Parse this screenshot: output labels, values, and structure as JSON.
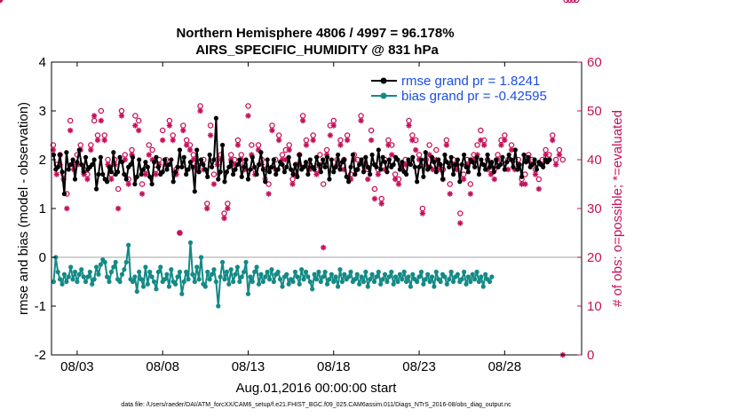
{
  "chart_data": {
    "type": "line",
    "title": "Northern Hemisphere 4806 / 4997 = 96.178%",
    "subtitle": "AIRS_SPECIFIC_HUMIDITY @ 831 hPa",
    "xlabel": "Aug.01,2016 00:00:00 start",
    "ylabel": "rmse and bias (model - observation)",
    "y2label": "# of obs: o=possible; *=evaluated",
    "footnote": "data file: /Users/raeder/DAI/ATM_forcXX/CAM6_setup/f.e21.FHIST_BGC.f09_025.CAM6assim.011/Diags_NTrS_2016-08/obs_diag_output.nc",
    "xlim": [
      1.5,
      32.5
    ],
    "ylim": [
      -2,
      4
    ],
    "y2lim": [
      0,
      60
    ],
    "x_ticks": [
      3,
      8,
      13,
      18,
      23,
      28
    ],
    "x_tick_labels": [
      "08/03",
      "08/08",
      "08/13",
      "08/18",
      "08/23",
      "08/28"
    ],
    "y_ticks": [
      -2,
      -1,
      0,
      1,
      2,
      3,
      4
    ],
    "y_tick_labels": [
      "-2",
      "-1",
      "0",
      "1",
      "2",
      "3",
      "4"
    ],
    "y2_ticks": [
      0,
      10,
      20,
      30,
      40,
      50,
      60
    ],
    "y2_tick_labels": [
      "0",
      "10",
      "20",
      "30",
      "40",
      "50",
      "60"
    ],
    "colors": {
      "rmse": "#000000",
      "bias": "#138a86",
      "obs": "#c7105a",
      "zero_line": "#b3b3b3",
      "legend_text": "#1a4ee6"
    },
    "series": [
      {
        "name": "rmse grand pr = 1.8241",
        "axis": "left",
        "values": [
          2.1,
          1.8,
          1.85,
          2.1,
          1.75,
          1.3,
          2.15,
          1.8,
          1.9,
          2.0,
          1.6,
          1.95,
          2.2,
          1.9,
          1.75,
          2.05,
          1.8,
          1.85,
          1.9,
          2.0,
          1.4,
          1.7,
          2.05,
          1.7,
          1.6,
          1.55,
          1.85,
          1.75,
          2.15,
          1.7,
          1.75,
          2.05,
          1.95,
          1.7,
          1.6,
          1.85,
          1.9,
          2.05,
          1.5,
          1.65,
          2.0,
          1.7,
          1.8,
          1.95,
          1.85,
          1.65,
          1.5,
          1.95,
          2.05,
          1.85,
          1.7,
          1.75,
          2.0,
          1.8,
          1.9,
          2.0,
          1.55,
          1.75,
          1.85,
          2.2,
          1.85,
          2.05,
          1.7,
          1.8,
          1.95,
          1.85,
          1.35,
          2.2,
          1.75,
          2.0,
          1.9,
          1.8,
          1.65,
          2.1,
          1.85,
          2.0,
          2.85,
          1.6,
          1.75,
          2.3,
          1.55,
          1.75,
          1.85,
          1.95,
          1.7,
          1.8,
          1.9,
          2.0,
          1.65,
          1.85,
          2.0,
          1.6,
          1.8,
          2.05,
          1.85,
          1.7,
          1.9,
          2.15,
          1.8,
          1.55,
          2.0,
          1.75,
          1.85,
          2.0,
          1.7,
          1.8,
          1.95,
          1.9,
          1.75,
          1.85,
          2.05,
          1.8,
          1.7,
          1.9,
          1.65,
          2.1,
          1.8,
          1.85,
          1.95,
          1.7,
          2.0,
          1.85,
          1.8,
          2.05,
          1.9,
          1.75,
          2.0,
          1.85,
          2.05,
          1.6,
          2.0,
          1.75,
          1.85,
          2.1,
          1.8,
          1.95,
          2.0,
          1.65,
          1.55,
          1.85,
          2.1,
          1.7,
          1.8,
          1.9,
          2.0,
          1.75,
          2.05,
          1.85,
          1.7,
          2.1,
          1.9,
          1.85,
          2.2,
          1.8,
          2.05,
          1.95,
          1.75,
          2.0,
          1.85,
          1.9,
          2.05,
          2.0,
          1.8,
          1.95,
          1.75,
          1.7,
          2.0,
          1.9,
          2.05,
          1.85,
          1.55,
          1.85,
          2.0,
          1.65,
          2.15,
          1.8,
          1.85,
          2.05,
          1.95,
          1.75,
          2.0,
          1.9,
          1.6,
          2.1,
          1.95,
          1.85,
          2.05,
          1.7,
          1.9,
          2.0,
          1.55,
          1.9,
          2.1,
          1.85,
          1.75,
          2.0,
          1.95,
          1.85,
          2.05,
          1.7,
          2.0,
          1.9,
          1.8,
          2.1,
          1.85,
          1.95,
          1.75,
          2.0,
          1.85,
          1.9,
          2.05,
          1.8,
          1.95,
          2.1,
          2.0,
          1.85,
          2.2,
          1.8,
          1.9,
          1.65,
          2.1,
          1.95,
          2.05,
          1.85,
          1.9,
          2.0,
          1.8,
          1.95,
          1.9,
          1.85,
          2.0,
          1.95,
          2.0
        ],
        "x_start": 1.625,
        "x_step": 0.125
      },
      {
        "name": "bias grand pr = -0.42595",
        "axis": "left",
        "values": [
          -0.5,
          0.0,
          -0.3,
          -0.45,
          -0.55,
          -0.35,
          -0.5,
          -0.4,
          -0.2,
          -0.45,
          -0.3,
          -0.5,
          -0.35,
          -0.25,
          -0.4,
          -0.5,
          -0.4,
          -0.3,
          -0.55,
          -0.45,
          -0.2,
          -0.35,
          -0.15,
          -0.05,
          -0.1,
          -0.4,
          -0.5,
          -0.3,
          -0.2,
          -0.1,
          -0.45,
          -0.5,
          -0.35,
          -0.25,
          -0.1,
          0.25,
          -0.45,
          -0.5,
          -0.4,
          -0.7,
          -0.3,
          -0.45,
          -0.6,
          -0.2,
          -0.55,
          -0.3,
          -0.4,
          -0.5,
          -0.65,
          -0.3,
          -0.2,
          -0.5,
          -0.45,
          -0.35,
          -0.6,
          -0.25,
          -0.5,
          -0.55,
          -0.4,
          -0.3,
          -0.75,
          -0.5,
          -0.3,
          -0.45,
          0.3,
          -0.35,
          -0.5,
          -0.2,
          -0.45,
          0.0,
          -0.55,
          -0.6,
          -0.3,
          -0.45,
          -0.35,
          -0.25,
          -0.5,
          -1.0,
          -0.4,
          -0.1,
          -0.45,
          -0.3,
          -0.55,
          -0.25,
          -0.5,
          -0.35,
          -0.2,
          -0.5,
          -0.4,
          -0.3,
          -0.1,
          -0.75,
          -0.4,
          -0.5,
          -0.3,
          -0.2,
          -0.55,
          -0.35,
          -0.5,
          -0.4,
          -0.3,
          -0.45,
          -0.25,
          -0.5,
          -0.35,
          -0.3,
          -0.45,
          -0.6,
          -0.4,
          -0.35,
          -0.55,
          -0.45,
          -0.5,
          -0.3,
          -0.4,
          -0.55,
          -0.25,
          -0.45,
          -0.3,
          -0.4,
          -0.5,
          -0.65,
          -0.35,
          -0.45,
          -0.3,
          -0.5,
          -0.4,
          -0.3,
          -0.55,
          -0.45,
          -0.35,
          -0.5,
          -0.4,
          -0.6,
          -0.25,
          -0.5,
          -0.35,
          -0.45,
          -0.4,
          -0.3,
          -0.5,
          -0.45,
          -0.35,
          -0.55,
          -0.4,
          -0.5,
          -0.3,
          -0.6,
          -0.45,
          -0.35,
          -0.5,
          -0.4,
          -0.3,
          -0.55,
          -0.45,
          -0.35,
          -0.5,
          -0.4,
          -0.3,
          -0.55,
          -0.4,
          -0.5,
          -0.35,
          -0.45,
          -0.3,
          -0.5,
          -0.4,
          -0.6,
          -0.35,
          -0.45,
          -0.5,
          -0.4,
          -0.3,
          -0.55,
          -0.45,
          -0.35,
          -0.5,
          -0.4,
          -0.6,
          -0.3,
          -0.45,
          -0.5,
          -0.35,
          -0.4,
          -0.55,
          -0.45,
          -0.3,
          -0.5,
          -0.4,
          -0.35,
          -0.5,
          -0.45,
          -0.3,
          -0.55,
          -0.4,
          -0.5,
          -0.35,
          -0.45,
          -0.3,
          -0.5,
          -0.4,
          -0.6,
          -0.35,
          -0.45,
          -0.5,
          -0.4
        ],
        "x_start": 1.625,
        "x_step": 0.125
      }
    ],
    "obs_possible_x": [
      1.6,
      1.8,
      2.0,
      2.2,
      2.4,
      2.6,
      2.8,
      3.0,
      3.2,
      3.4,
      3.6,
      3.8,
      4.0,
      4.2,
      4.4,
      4.6,
      4.8,
      5.0,
      5.2,
      5.4,
      5.6,
      5.8,
      6.0,
      6.2,
      6.4,
      6.6,
      6.8,
      7.0,
      7.2,
      7.4,
      7.6,
      7.8,
      8.0,
      8.2,
      8.4,
      8.6,
      8.8,
      9.0,
      9.2,
      9.4,
      9.6,
      9.8,
      10.0,
      10.2,
      10.4,
      10.6,
      10.8,
      11.0,
      11.2,
      11.4,
      11.6,
      11.8,
      12.0,
      12.2,
      12.4,
      12.6,
      12.8,
      13.0,
      13.2,
      13.4,
      13.6,
      13.8,
      14.0,
      14.2,
      14.4,
      14.6,
      14.8,
      15.0,
      15.2,
      15.4,
      15.6,
      15.8,
      16.0,
      16.2,
      16.4,
      16.6,
      16.8,
      17.0,
      17.2,
      17.4,
      17.6,
      17.8,
      18.0,
      18.2,
      18.4,
      18.6,
      18.8,
      19.0,
      19.2,
      19.4,
      19.6,
      19.8,
      20.0,
      20.2,
      20.4,
      20.6,
      20.8,
      21.0,
      21.2,
      21.4,
      21.6,
      21.8,
      22.0,
      22.2,
      22.4,
      22.6,
      22.8,
      23.0,
      23.2,
      23.4,
      23.6,
      23.8,
      24.0,
      24.2,
      24.4,
      24.6,
      24.8,
      25.0,
      25.2,
      25.4,
      25.6,
      25.8,
      26.0,
      26.2,
      26.4,
      26.6,
      26.8,
      27.0,
      27.2,
      27.4,
      27.6,
      27.8,
      28.0,
      28.2,
      28.4,
      28.6,
      28.8,
      29.0,
      29.2,
      29.4,
      29.6,
      29.8,
      30.0,
      30.2,
      30.4,
      30.6,
      30.8,
      31.0,
      31.2,
      31.4,
      31.6,
      31.8,
      32.0,
      32.2
    ],
    "obs_possible_y": [
      43,
      39,
      41,
      37,
      33,
      48,
      39,
      41,
      43,
      38,
      37,
      43,
      48,
      45,
      50,
      45,
      40,
      37,
      40,
      34,
      50,
      41,
      36,
      42,
      49,
      48,
      35,
      38,
      43,
      42,
      38,
      40,
      46,
      40,
      48,
      45,
      38,
      25,
      47,
      44,
      43,
      41,
      39,
      51,
      40,
      31,
      47,
      37,
      40,
      41,
      29,
      31,
      41,
      40,
      44,
      41,
      39,
      51,
      43,
      38,
      43,
      40,
      38,
      35,
      47,
      40,
      45,
      41,
      42,
      43,
      36,
      39,
      41,
      49,
      44,
      39,
      45,
      38,
      41,
      35,
      42,
      47,
      48,
      40,
      44,
      40,
      45,
      37,
      41,
      40,
      49,
      40,
      38,
      46,
      34,
      38,
      32,
      40,
      44,
      43,
      37,
      36,
      39,
      40,
      48,
      45,
      44,
      41,
      30,
      40,
      43,
      40,
      42,
      39,
      38,
      44,
      35,
      40,
      39,
      29,
      37,
      40,
      35,
      41,
      43,
      46,
      44,
      40,
      38,
      38,
      41,
      44,
      45,
      40,
      43,
      40,
      40,
      36,
      37,
      41,
      40,
      38,
      36,
      40,
      42,
      41,
      45,
      40,
      42,
      40
    ],
    "obs_evaluated_y": [
      42,
      37,
      39,
      36,
      30,
      46,
      38,
      39,
      42,
      37,
      36,
      42,
      49,
      44,
      48,
      44,
      39,
      36,
      39,
      30,
      49,
      40,
      35,
      41,
      47,
      46,
      33,
      37,
      41,
      40,
      37,
      39,
      44,
      39,
      47,
      44,
      37,
      25,
      46,
      43,
      42,
      40,
      38,
      50,
      38,
      30,
      45,
      35,
      39,
      40,
      28,
      30,
      40,
      39,
      43,
      40,
      38,
      49,
      41,
      37,
      42,
      39,
      36,
      33,
      46,
      38,
      44,
      40,
      40,
      42,
      35,
      37,
      39,
      48,
      43,
      38,
      44,
      37,
      39,
      22,
      41,
      45,
      47,
      39,
      43,
      38,
      44,
      36,
      40,
      38,
      48,
      39,
      36,
      44,
      32,
      37,
      31,
      38,
      43,
      41,
      36,
      35,
      38,
      39,
      47,
      44,
      42,
      40,
      29,
      39,
      41,
      38,
      40,
      38,
      36,
      43,
      33,
      39,
      38,
      27,
      36,
      39,
      33,
      40,
      41,
      44,
      43,
      38,
      37,
      36,
      40,
      43,
      44,
      38,
      42,
      38,
      39,
      35,
      35,
      40,
      39,
      37,
      34,
      39,
      41,
      40,
      44,
      39,
      41,
      0
    ]
  }
}
